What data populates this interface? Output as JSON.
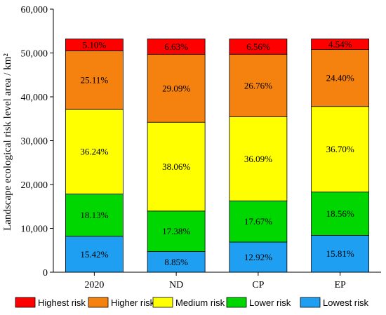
{
  "chart_data": {
    "type": "bar",
    "stacked": true,
    "ylabel": "Landscape ecological risk level area / km²",
    "ylim": [
      0,
      60000
    ],
    "yticks": [
      "0",
      "10,000",
      "20,000",
      "30,000",
      "40,000",
      "50,000",
      "60,000"
    ],
    "categories": [
      "2020",
      "ND",
      "CP",
      "EP"
    ],
    "total": 53200,
    "legend_position": "bottom",
    "series": [
      {
        "name": "Lowest risk",
        "color": "#1e9ff2",
        "values": [
          15.42,
          8.85,
          12.92,
          15.81
        ],
        "labels": [
          "15.42%",
          "8.85%",
          "12.92%",
          "15.81%"
        ]
      },
      {
        "name": "Lower risk",
        "color": "#00d600",
        "values": [
          18.13,
          17.38,
          17.67,
          18.56
        ],
        "labels": [
          "18.13%",
          "17.38%",
          "17.67%",
          "18.56%"
        ]
      },
      {
        "name": "Medium risk",
        "color": "#ffff00",
        "values": [
          36.24,
          38.06,
          36.09,
          36.7
        ],
        "labels": [
          "36.24%",
          "38.06%",
          "36.09%",
          "36.70%"
        ]
      },
      {
        "name": "Higher risk",
        "color": "#f5810f",
        "values": [
          25.11,
          29.09,
          26.76,
          24.4
        ],
        "labels": [
          "25.11%",
          "29.09%",
          "26.76%",
          "24.40%"
        ]
      },
      {
        "name": "Highest risk",
        "color": "#ff0000",
        "values": [
          5.1,
          6.63,
          6.56,
          4.54
        ],
        "labels": [
          "5.10%",
          "6.63%",
          "6.56%",
          "4.54%"
        ]
      }
    ],
    "legend_order": [
      "Highest risk",
      "Higher risk",
      "Medium risk",
      "Lower risk",
      "Lowest risk"
    ]
  }
}
